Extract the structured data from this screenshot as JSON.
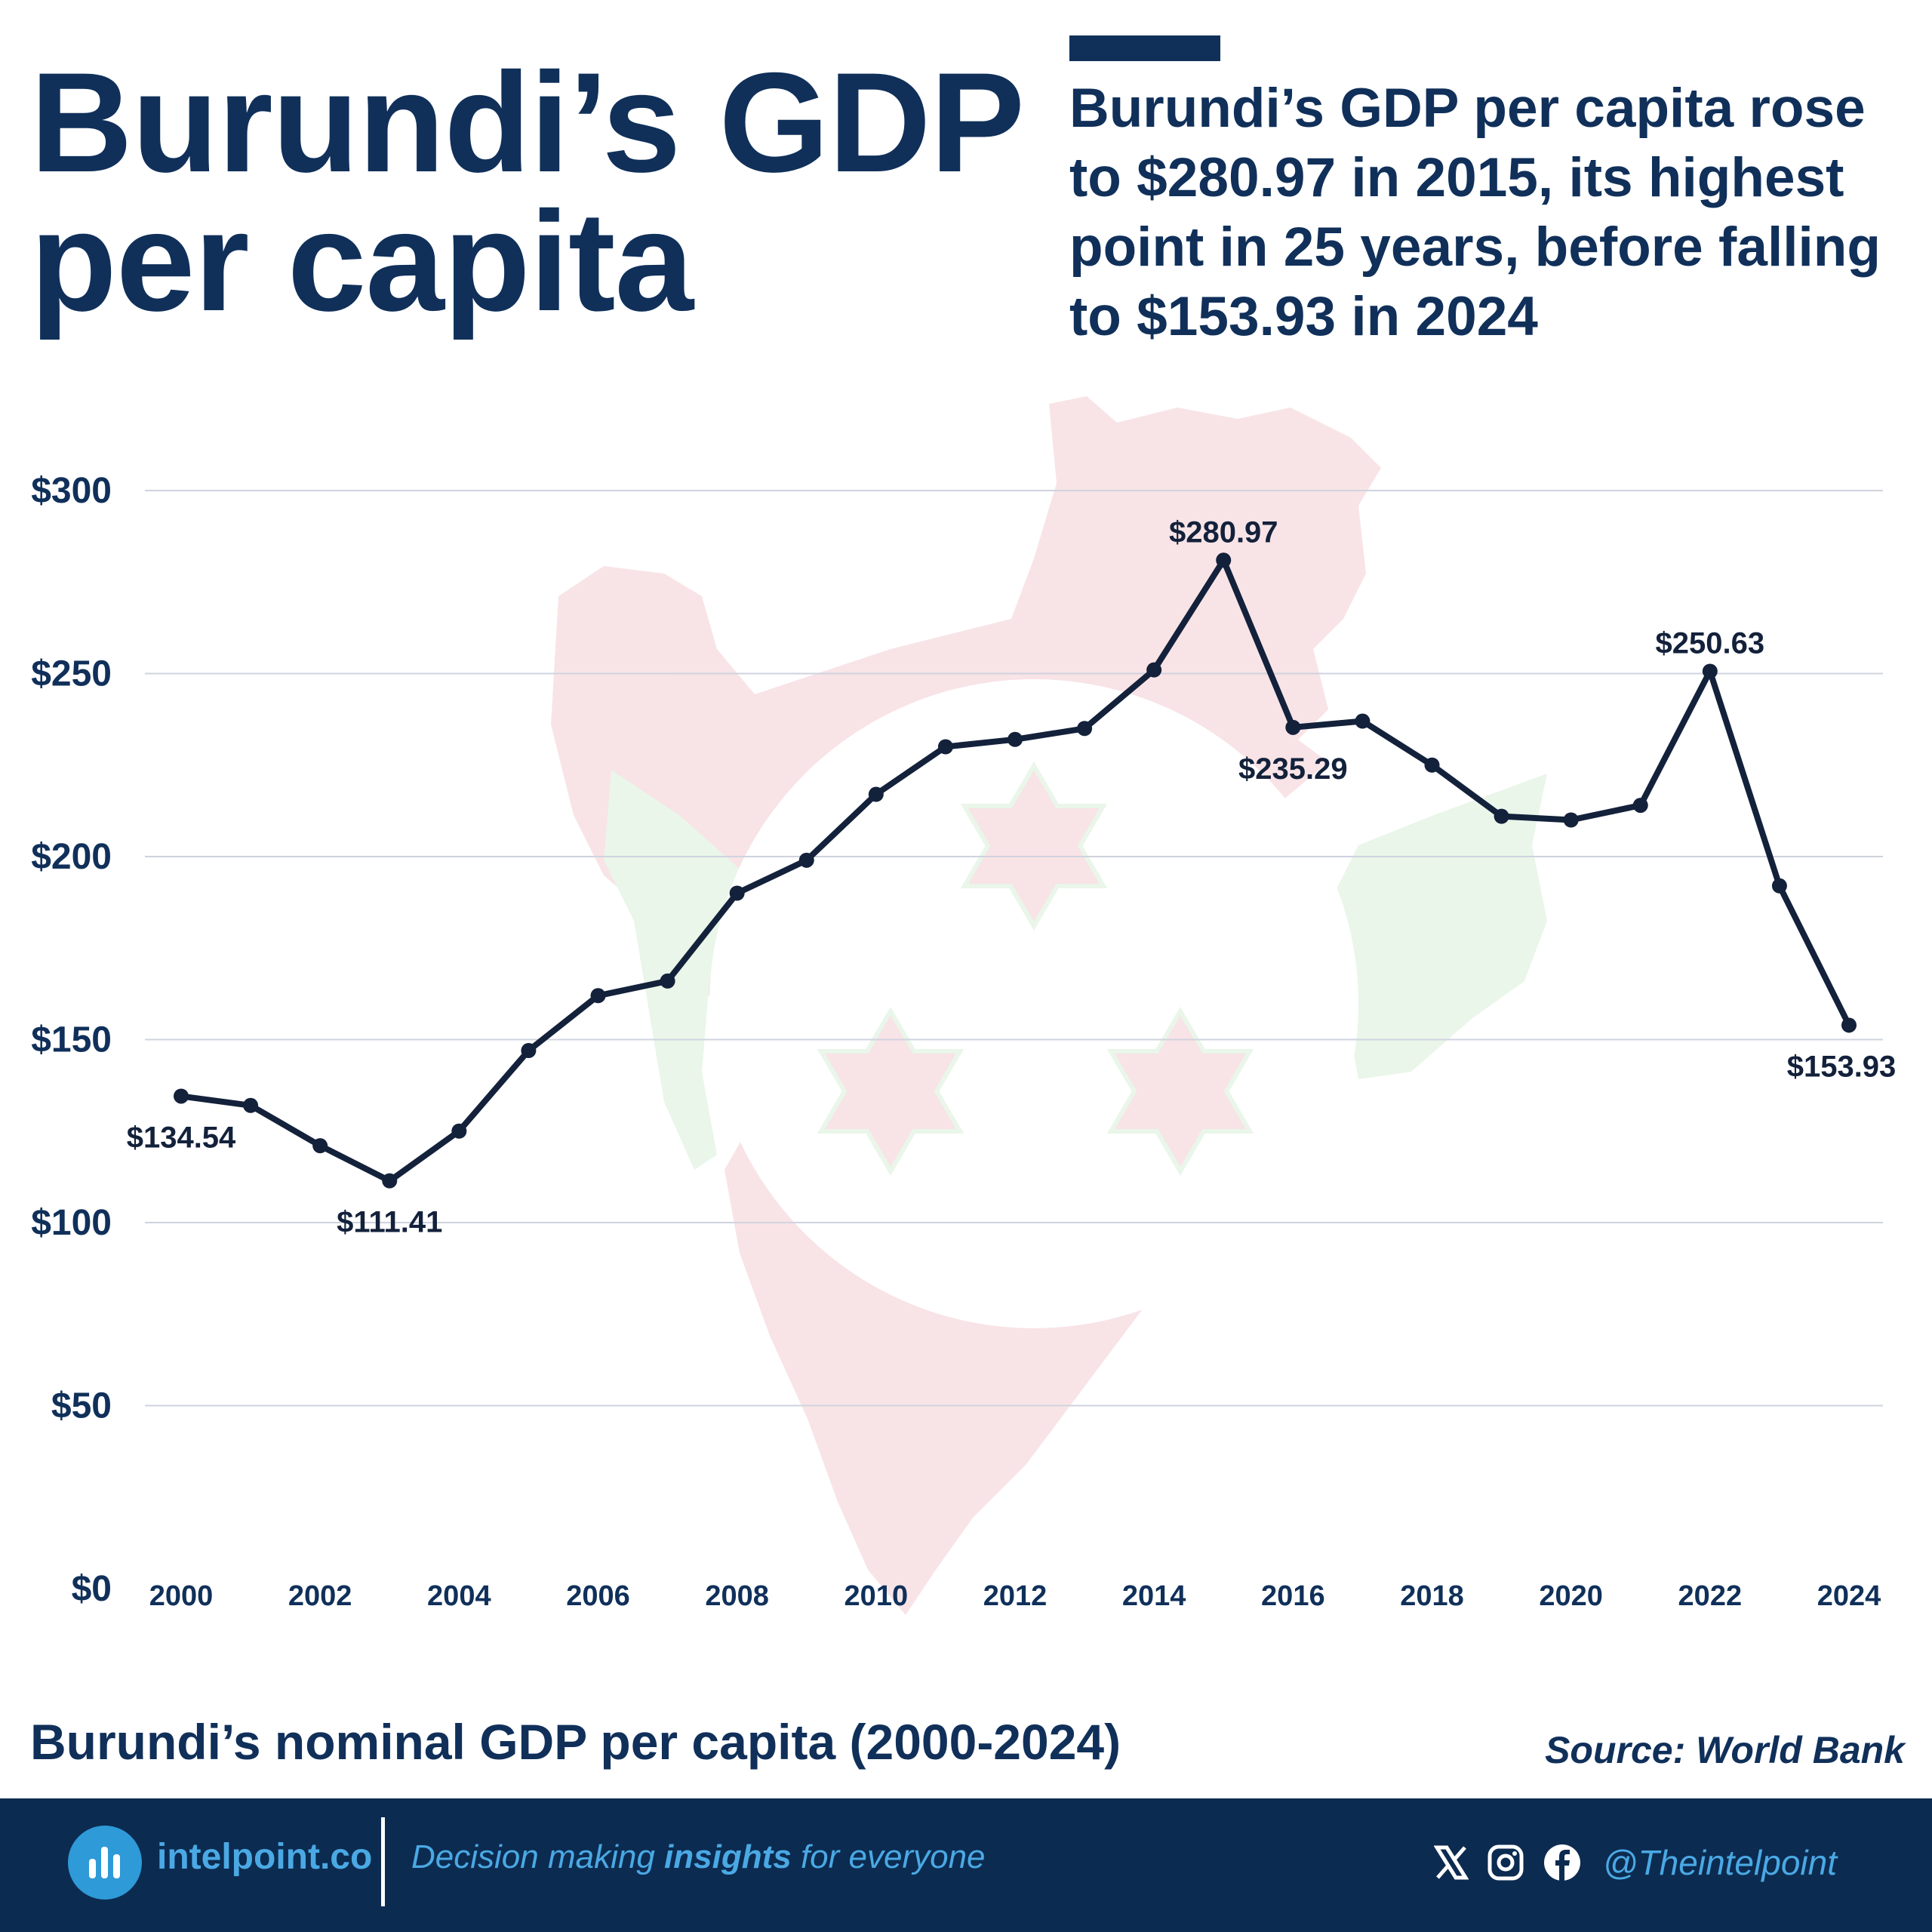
{
  "header": {
    "title_line1": "Burundi’s GDP",
    "title_line2": "per capita",
    "subtitle": "Burundi’s GDP per capita rose to $280.97 in 2015, its highest point in 25 years, before falling to $153.93 in 2024"
  },
  "chart_data": {
    "type": "line",
    "x": [
      2000,
      2001,
      2002,
      2003,
      2004,
      2005,
      2006,
      2007,
      2008,
      2009,
      2010,
      2011,
      2012,
      2013,
      2014,
      2015,
      2016,
      2017,
      2018,
      2019,
      2020,
      2021,
      2022,
      2023,
      2024
    ],
    "values": [
      134.54,
      132,
      121,
      111.41,
      125,
      147,
      162,
      166,
      190,
      199,
      217,
      230,
      232,
      235,
      251,
      280.97,
      235.29,
      237,
      225,
      211,
      210,
      214,
      250.63,
      192,
      153.93
    ],
    "xticks": [
      "2000",
      "2002",
      "2004",
      "2006",
      "2008",
      "2010",
      "2012",
      "2014",
      "2016",
      "2018",
      "2020",
      "2022",
      "2024"
    ],
    "xtick_years": [
      2000,
      2002,
      2004,
      2006,
      2008,
      2010,
      2012,
      2014,
      2016,
      2018,
      2020,
      2022,
      2024
    ],
    "yticks": [
      "$0",
      "$50",
      "$100",
      "$150",
      "$200",
      "$250",
      "$300"
    ],
    "ytick_values": [
      0,
      50,
      100,
      150,
      200,
      250,
      300
    ],
    "ylim": [
      0,
      300
    ],
    "xlim": [
      2000,
      2024
    ],
    "grid": true,
    "line_color": "#13213b",
    "annotations": [
      {
        "year": 2000,
        "value": 134.54,
        "label": "$134.54",
        "position": "below"
      },
      {
        "year": 2003,
        "value": 111.41,
        "label": "$111.41",
        "position": "below"
      },
      {
        "year": 2015,
        "value": 280.97,
        "label": "$280.97",
        "position": "above"
      },
      {
        "year": 2016,
        "value": 235.29,
        "label": "$235.29",
        "position": "below"
      },
      {
        "year": 2022,
        "value": 250.63,
        "label": "$250.63",
        "position": "above"
      },
      {
        "year": 2024,
        "value": 153.93,
        "label": "$153.93",
        "position": "below"
      }
    ]
  },
  "caption": "Burundi’s nominal GDP per capita (2000-2024)",
  "source": "Source: World Bank",
  "footer": {
    "brand": "intelpoint.co",
    "tagline_before": "Decision making ",
    "tagline_bold": "insights",
    "tagline_after": " for everyone",
    "handle": "@Theintelpoint",
    "icons": [
      "x-icon",
      "instagram-icon",
      "facebook-icon"
    ]
  },
  "colors": {
    "navy": "#10305a",
    "footer_bg": "#0c2b51",
    "accent_blue": "#4aa9e4",
    "map_red": "#f3cdd2",
    "map_green": "#d8efd8"
  }
}
